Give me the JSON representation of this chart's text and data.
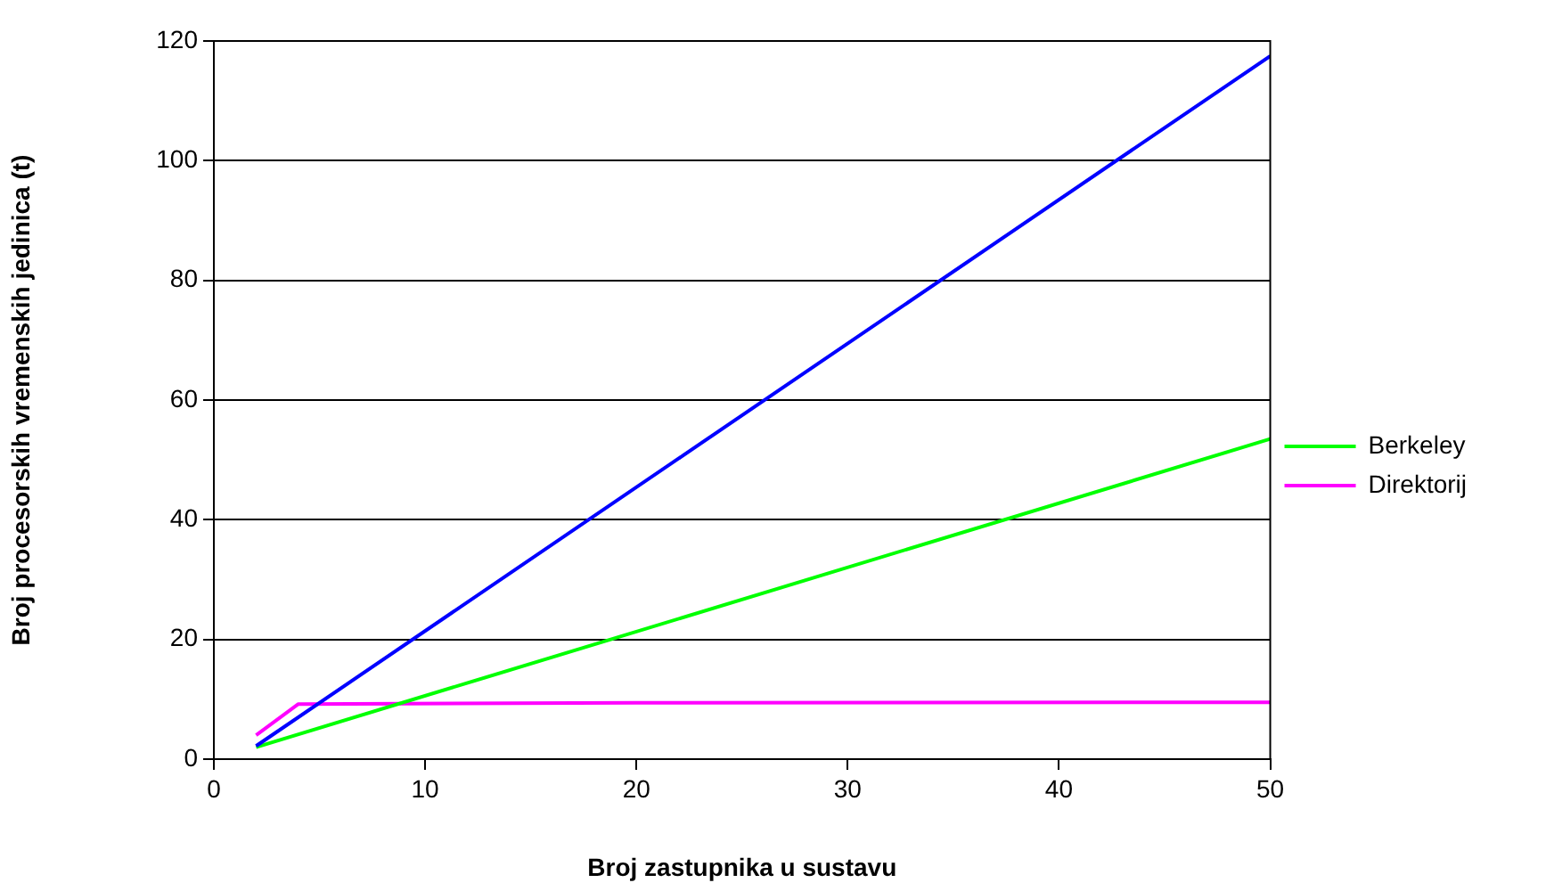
{
  "chart_data": {
    "type": "line",
    "xlabel": "Broj zastupnika u sustavu",
    "ylabel": "Broj procesorskih vremenskih jedinica (t)",
    "series": [
      {
        "color": "#0000ff",
        "x": [
          2,
          50
        ],
        "values": [
          2.2,
          117.5
        ]
      },
      {
        "name": "Berkeley",
        "color": "#00ff00",
        "x": [
          2,
          50
        ],
        "values": [
          2,
          53.5
        ]
      },
      {
        "name": "Direktorij",
        "color": "#ff00ff",
        "x": [
          2,
          4,
          20,
          50
        ],
        "values": [
          4,
          9.2,
          9.4,
          9.5
        ]
      }
    ],
    "xlim": [
      0,
      50
    ],
    "xticks": [
      0,
      10,
      20,
      30,
      40,
      50
    ],
    "ylim": [
      0,
      120
    ],
    "yticks": [
      0,
      20,
      40,
      60,
      80,
      100,
      120
    ],
    "grid": "y",
    "legend": "right",
    "marker": "none",
    "line_style": "solid"
  }
}
